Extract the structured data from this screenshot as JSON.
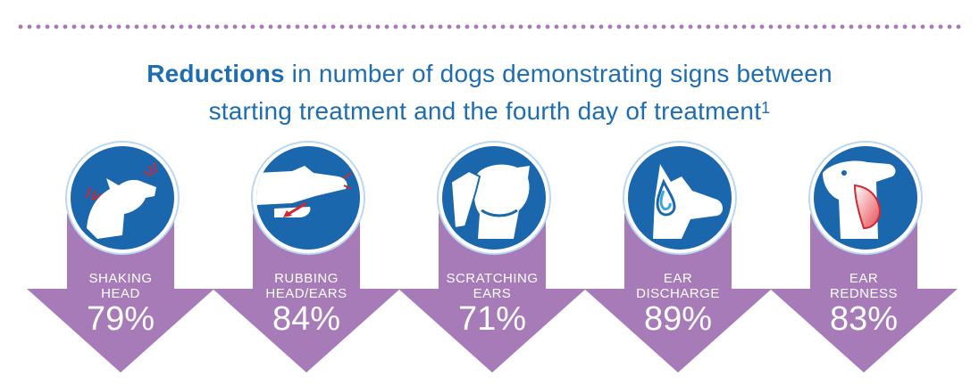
{
  "title": {
    "bold": "Reductions",
    "line1_rest": " in number of dogs demonstrating signs between",
    "line2": "starting treatment and the fourth day of treatment",
    "superscript": "1"
  },
  "colors": {
    "arrow": "#a77bb8",
    "circle": "#1b67ae",
    "title": "#1e6db1",
    "accent_red": "#d22630"
  },
  "items": [
    {
      "label_line1": "SHAKING",
      "label_line2": "HEAD",
      "percent": "79%",
      "icon": "shaking-head-icon"
    },
    {
      "label_line1": "RUBBING",
      "label_line2": "HEAD/EARS",
      "percent": "84%",
      "icon": "rubbing-head-icon"
    },
    {
      "label_line1": "SCRATCHING",
      "label_line2": "EARS",
      "percent": "71%",
      "icon": "scratching-ears-icon"
    },
    {
      "label_line1": "EAR",
      "label_line2": "DISCHARGE",
      "percent": "89%",
      "icon": "ear-discharge-icon"
    },
    {
      "label_line1": "EAR",
      "label_line2": "REDNESS",
      "percent": "83%",
      "icon": "ear-redness-icon"
    }
  ]
}
